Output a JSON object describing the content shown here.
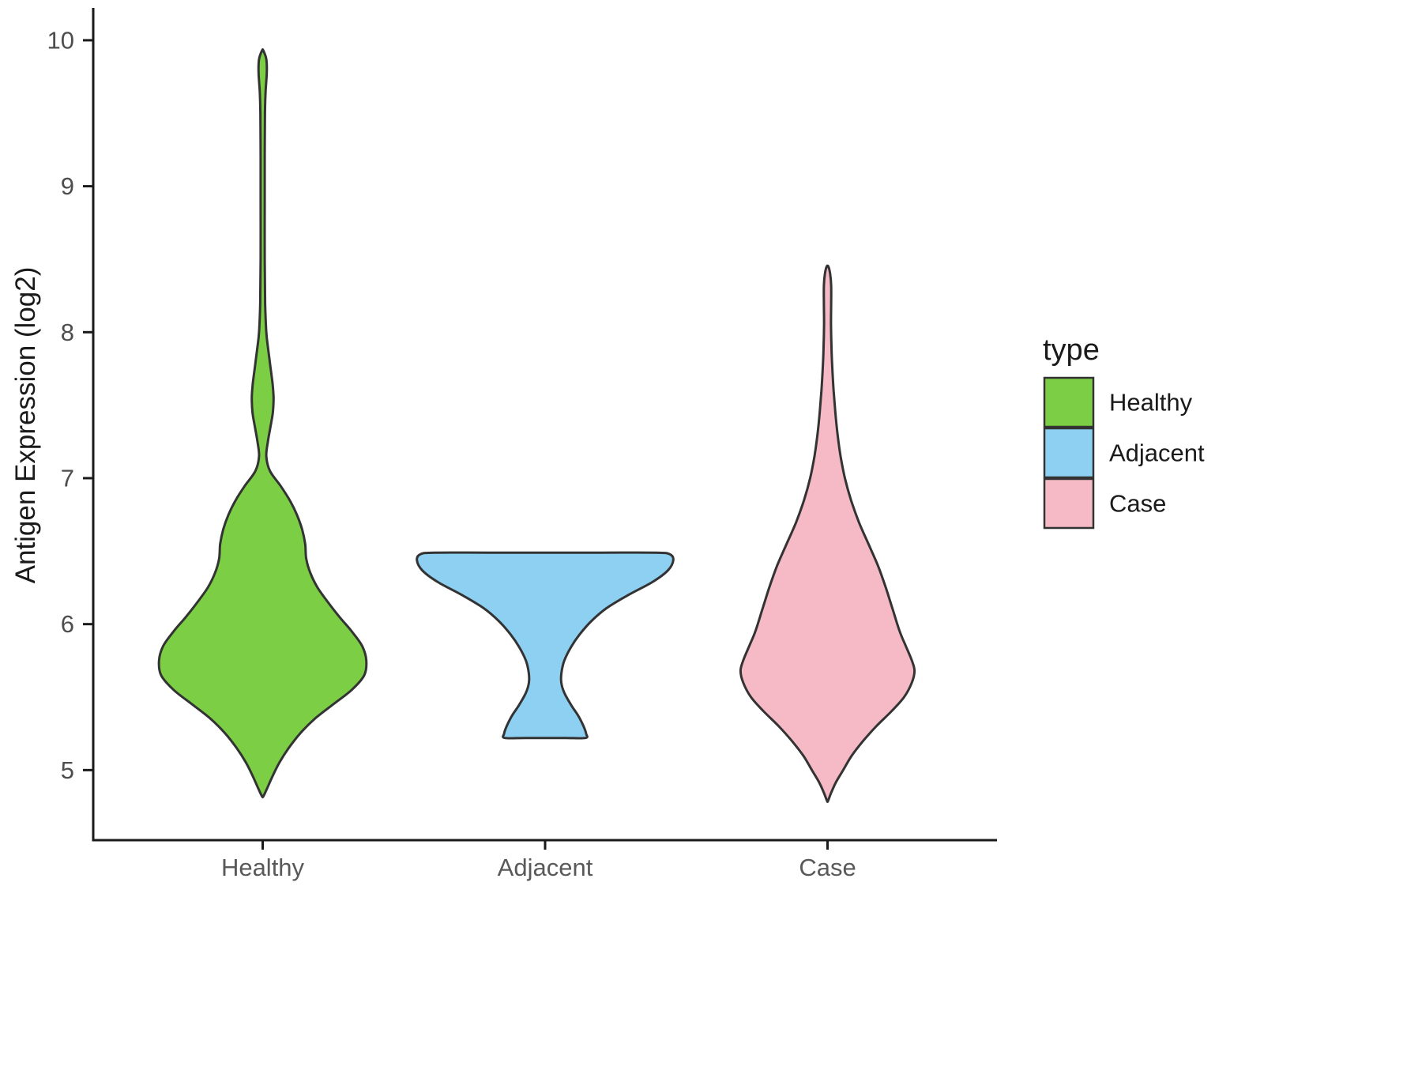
{
  "chart_data": {
    "type": "violin",
    "title": "",
    "xlabel": "",
    "ylabel": "Antigen Expression (log2)",
    "ylim": [
      4.52,
      10.2
    ],
    "yticks": [
      5,
      6,
      7,
      8,
      9,
      10
    ],
    "categories": [
      "Healthy",
      "Adjacent",
      "Case"
    ],
    "grid": "off",
    "outline_color": "#333333",
    "axis_color": "#1a1a1a",
    "tick_label_color": "#4d4d4d",
    "category_label_color": "#595959",
    "text_color": "#1a1a1a",
    "legend": {
      "title": "type",
      "position": "right",
      "entries": [
        {
          "label": "Healthy",
          "color": "#7CCE45"
        },
        {
          "label": "Adjacent",
          "color": "#8DD0F2"
        },
        {
          "label": "Case",
          "color": "#F5BAC6"
        }
      ]
    },
    "series": [
      {
        "name": "Healthy",
        "color": "#7CCE45",
        "max_halfwidth": 0.367,
        "flat_top": false,
        "flat_bottom": false,
        "y_range": [
          4.82,
          9.93
        ],
        "profile": [
          [
            9.93,
            0.006
          ],
          [
            9.87,
            0.035
          ],
          [
            9.78,
            0.04
          ],
          [
            9.65,
            0.028
          ],
          [
            9.5,
            0.022
          ],
          [
            9.2,
            0.02
          ],
          [
            8.9,
            0.02
          ],
          [
            8.5,
            0.02
          ],
          [
            8.2,
            0.024
          ],
          [
            8.0,
            0.035
          ],
          [
            7.9,
            0.05
          ],
          [
            7.78,
            0.072
          ],
          [
            7.65,
            0.095
          ],
          [
            7.55,
            0.105
          ],
          [
            7.45,
            0.098
          ],
          [
            7.35,
            0.075
          ],
          [
            7.25,
            0.05
          ],
          [
            7.15,
            0.035
          ],
          [
            7.05,
            0.07
          ],
          [
            6.95,
            0.17
          ],
          [
            6.85,
            0.26
          ],
          [
            6.75,
            0.33
          ],
          [
            6.65,
            0.38
          ],
          [
            6.55,
            0.41
          ],
          [
            6.45,
            0.42
          ],
          [
            6.35,
            0.46
          ],
          [
            6.25,
            0.53
          ],
          [
            6.15,
            0.63
          ],
          [
            6.05,
            0.74
          ],
          [
            5.95,
            0.86
          ],
          [
            5.85,
            0.96
          ],
          [
            5.75,
            1.0
          ],
          [
            5.65,
            0.98
          ],
          [
            5.55,
            0.86
          ],
          [
            5.45,
            0.68
          ],
          [
            5.35,
            0.5
          ],
          [
            5.25,
            0.36
          ],
          [
            5.15,
            0.25
          ],
          [
            5.05,
            0.16
          ],
          [
            4.95,
            0.09
          ],
          [
            4.87,
            0.04
          ],
          [
            4.82,
            0.006
          ]
        ]
      },
      {
        "name": "Adjacent",
        "color": "#8DD0F2",
        "max_halfwidth": 0.454,
        "flat_top": true,
        "flat_bottom": true,
        "y_range": [
          5.22,
          6.49
        ],
        "profile": [
          [
            6.49,
            0.86
          ],
          [
            6.48,
            0.97
          ],
          [
            6.44,
            1.0
          ],
          [
            6.37,
            0.96
          ],
          [
            6.29,
            0.84
          ],
          [
            6.2,
            0.65
          ],
          [
            6.11,
            0.48
          ],
          [
            6.02,
            0.36
          ],
          [
            5.93,
            0.27
          ],
          [
            5.84,
            0.2
          ],
          [
            5.75,
            0.15
          ],
          [
            5.67,
            0.128
          ],
          [
            5.6,
            0.126
          ],
          [
            5.53,
            0.15
          ],
          [
            5.45,
            0.2
          ],
          [
            5.37,
            0.26
          ],
          [
            5.3,
            0.3
          ],
          [
            5.25,
            0.32
          ],
          [
            5.22,
            0.315
          ]
        ]
      },
      {
        "name": "Case",
        "color": "#F5BAC6",
        "max_halfwidth": 0.308,
        "flat_top": false,
        "flat_bottom": false,
        "y_range": [
          4.79,
          8.45
        ],
        "profile": [
          [
            8.45,
            0.01
          ],
          [
            8.4,
            0.03
          ],
          [
            8.32,
            0.042
          ],
          [
            8.2,
            0.042
          ],
          [
            8.05,
            0.04
          ],
          [
            7.9,
            0.045
          ],
          [
            7.75,
            0.055
          ],
          [
            7.6,
            0.07
          ],
          [
            7.45,
            0.09
          ],
          [
            7.3,
            0.115
          ],
          [
            7.15,
            0.15
          ],
          [
            7.0,
            0.2
          ],
          [
            6.85,
            0.27
          ],
          [
            6.7,
            0.36
          ],
          [
            6.55,
            0.47
          ],
          [
            6.4,
            0.58
          ],
          [
            6.25,
            0.67
          ],
          [
            6.1,
            0.75
          ],
          [
            5.95,
            0.83
          ],
          [
            5.85,
            0.9
          ],
          [
            5.75,
            0.97
          ],
          [
            5.68,
            1.0
          ],
          [
            5.6,
            0.97
          ],
          [
            5.5,
            0.88
          ],
          [
            5.4,
            0.73
          ],
          [
            5.3,
            0.56
          ],
          [
            5.2,
            0.41
          ],
          [
            5.1,
            0.28
          ],
          [
            5.0,
            0.18
          ],
          [
            4.92,
            0.1
          ],
          [
            4.85,
            0.045
          ],
          [
            4.79,
            0.006
          ]
        ]
      }
    ]
  }
}
